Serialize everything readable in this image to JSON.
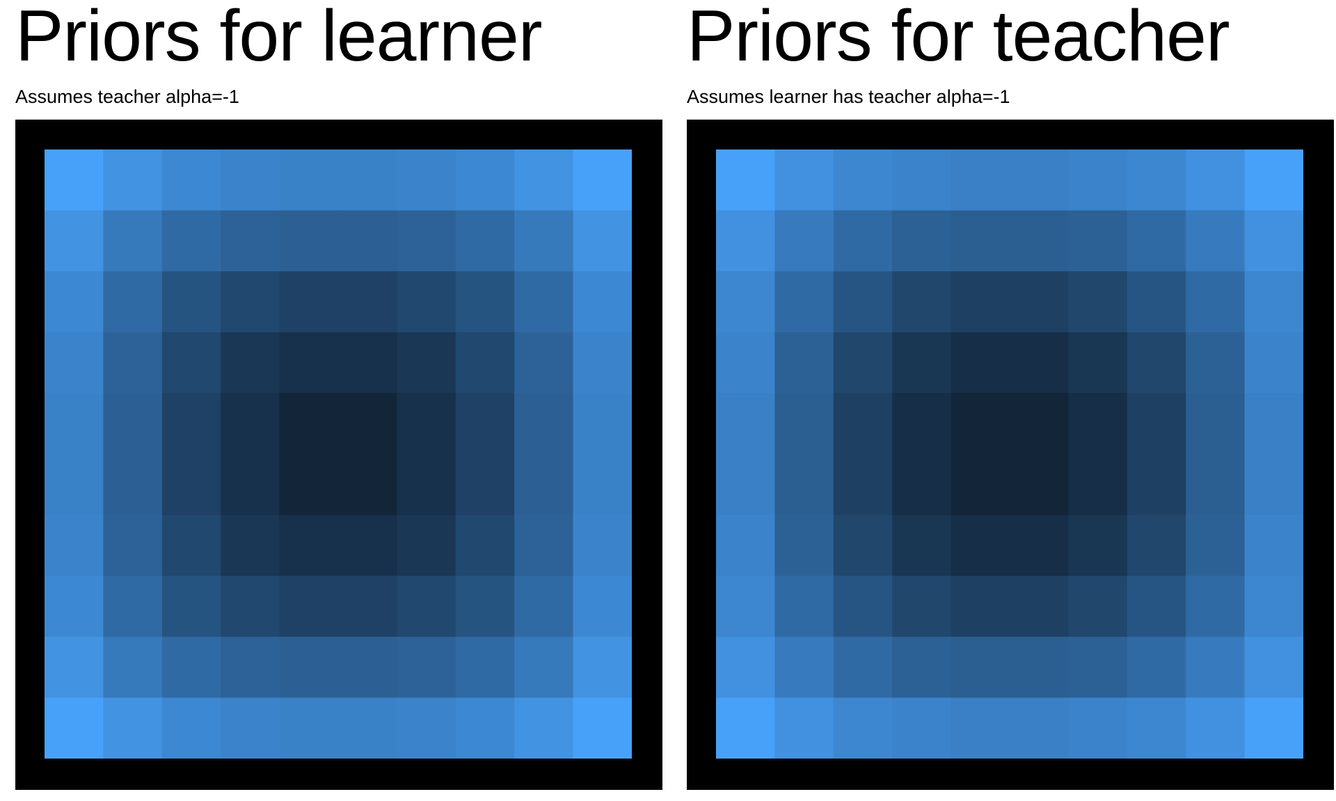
{
  "chart_data": [
    {
      "type": "heatmap",
      "title": "Priors for learner",
      "subtitle": "Assumes teacher alpha=-1",
      "rows": 10,
      "cols": 10,
      "colormap": {
        "low": "#0f1e2f",
        "high": "#48a1f8"
      },
      "background_color": "#000000",
      "values": [
        [
          1.0,
          0.89,
          0.81,
          0.78,
          0.76,
          0.76,
          0.78,
          0.81,
          0.89,
          1.0
        ],
        [
          0.89,
          0.7,
          0.58,
          0.52,
          0.5,
          0.5,
          0.52,
          0.58,
          0.7,
          0.89
        ],
        [
          0.81,
          0.58,
          0.41,
          0.32,
          0.27,
          0.27,
          0.32,
          0.41,
          0.58,
          0.81
        ],
        [
          0.78,
          0.52,
          0.32,
          0.19,
          0.14,
          0.14,
          0.19,
          0.32,
          0.52,
          0.78
        ],
        [
          0.76,
          0.5,
          0.27,
          0.14,
          0.05,
          0.05,
          0.14,
          0.27,
          0.5,
          0.76
        ],
        [
          0.76,
          0.5,
          0.27,
          0.14,
          0.05,
          0.05,
          0.14,
          0.27,
          0.5,
          0.76
        ],
        [
          0.78,
          0.52,
          0.32,
          0.19,
          0.14,
          0.14,
          0.19,
          0.32,
          0.52,
          0.78
        ],
        [
          0.81,
          0.58,
          0.41,
          0.32,
          0.27,
          0.27,
          0.32,
          0.41,
          0.58,
          0.81
        ],
        [
          0.89,
          0.7,
          0.58,
          0.52,
          0.5,
          0.5,
          0.52,
          0.58,
          0.7,
          0.89
        ],
        [
          1.0,
          0.89,
          0.81,
          0.78,
          0.76,
          0.76,
          0.78,
          0.81,
          0.89,
          1.0
        ]
      ]
    },
    {
      "type": "heatmap",
      "title": "Priors for teacher",
      "subtitle": "Assumes learner has teacher alpha=-1",
      "rows": 10,
      "cols": 10,
      "colormap": {
        "low": "#0f1e2f",
        "high": "#48a1f8"
      },
      "background_color": "#000000",
      "values": [
        [
          1.0,
          0.88,
          0.8,
          0.77,
          0.75,
          0.75,
          0.77,
          0.8,
          0.88,
          1.0
        ],
        [
          0.88,
          0.71,
          0.58,
          0.51,
          0.49,
          0.49,
          0.51,
          0.58,
          0.71,
          0.88
        ],
        [
          0.8,
          0.58,
          0.42,
          0.31,
          0.26,
          0.26,
          0.31,
          0.42,
          0.58,
          0.8
        ],
        [
          0.77,
          0.51,
          0.31,
          0.18,
          0.12,
          0.12,
          0.18,
          0.31,
          0.51,
          0.77
        ],
        [
          0.75,
          0.49,
          0.26,
          0.12,
          0.05,
          0.05,
          0.12,
          0.26,
          0.49,
          0.75
        ],
        [
          0.75,
          0.49,
          0.26,
          0.12,
          0.05,
          0.05,
          0.12,
          0.26,
          0.49,
          0.75
        ],
        [
          0.77,
          0.51,
          0.31,
          0.18,
          0.12,
          0.12,
          0.18,
          0.31,
          0.51,
          0.77
        ],
        [
          0.8,
          0.58,
          0.42,
          0.31,
          0.26,
          0.26,
          0.31,
          0.42,
          0.58,
          0.8
        ],
        [
          0.88,
          0.71,
          0.58,
          0.51,
          0.49,
          0.49,
          0.51,
          0.58,
          0.71,
          0.88
        ],
        [
          1.0,
          0.88,
          0.8,
          0.77,
          0.75,
          0.75,
          0.77,
          0.8,
          0.88,
          1.0
        ]
      ]
    }
  ]
}
